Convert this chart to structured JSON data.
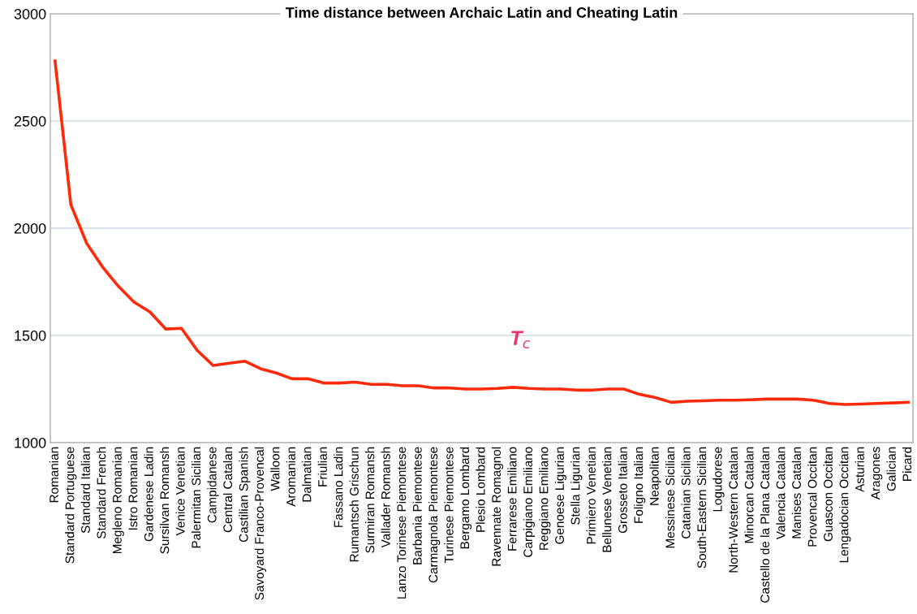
{
  "chart_data": {
    "type": "line",
    "title": "Time distance between Archaic Latin and Cheating Latin",
    "categories": [
      "Romanian",
      "Standard Portuguese",
      "Standard Italian",
      "Standard French",
      "Megleno Romanian",
      "Istro Romanian",
      "Gardenese Ladin",
      "Sursilvan Romansh",
      "Venice Venetian",
      "Palermitan Sicilian",
      "Campidanese",
      "Central Catalan",
      "Castilian Spanish",
      "Savoyard Franco-Provencal",
      "Walloon",
      "Aromanian",
      "Dalmatian",
      "Friulian",
      "Fassano Ladin",
      "Rumantsch Grischun",
      "Surmiran Romansh",
      "Vallader Romansh",
      "Lanzo Torinese Piemontese",
      "Barbania Piemontese",
      "Carmagnola Piemontese",
      "Turinese Piemontese",
      "Bergamo Lombard",
      "Plesio Lombard",
      "Ravennate Romagnol",
      "Ferrarese Emiliano",
      "Carpigiano Emiliano",
      "Reggiano Emiliano",
      "Genoese Ligurian",
      "Stella Ligurian",
      "Primiero Venetian",
      "Bellunese Venetian",
      "Grosseto Italian",
      "Foligno Italian",
      "Neapolitan",
      "Messinese Sicilian",
      "Catanian Sicilian",
      "South-Eastern Sicilian",
      "Logudorese",
      "North-Western Catalan",
      "Minorcan Catalan",
      "Castello de la Plana Catalan",
      "Valencia Catalan",
      "Manises Catalan",
      "Provencal Occitan",
      "Guascon Occitan",
      "Lengadocian Occitan",
      "Asturian",
      "Aragones",
      "Galician",
      "Picard"
    ],
    "series": [
      {
        "color": "#ff2a0a",
        "values": [
          2780,
          2110,
          1930,
          1820,
          1730,
          1655,
          1610,
          1530,
          1533,
          1430,
          1360,
          1370,
          1380,
          1345,
          1325,
          1298,
          1298,
          1278,
          1278,
          1282,
          1272,
          1272,
          1265,
          1265,
          1255,
          1255,
          1250,
          1250,
          1253,
          1258,
          1253,
          1250,
          1250,
          1245,
          1245,
          1250,
          1250,
          1225,
          1210,
          1188,
          1193,
          1195,
          1198,
          1198,
          1200,
          1203,
          1203,
          1203,
          1198,
          1183,
          1178,
          1180,
          1183,
          1185,
          1188
        ]
      }
    ],
    "ylim": [
      1000,
      3000
    ],
    "yticks": [
      1000,
      1500,
      2000,
      2500,
      3000
    ],
    "grid": "y",
    "marker": "none",
    "line_style": "solid",
    "annotations": [
      "T$_{c}$"
    ]
  }
}
